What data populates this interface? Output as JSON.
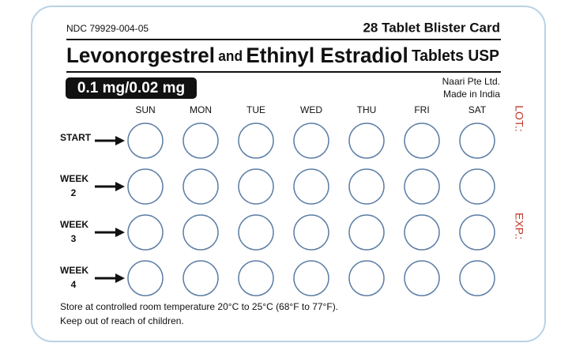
{
  "header": {
    "ndc": "NDC 79929-004-05",
    "card_type": "28 Tablet Blister Card"
  },
  "title": {
    "part1": "Levonorgestrel",
    "part2": "and",
    "part3": "Ethinyl Estradiol",
    "part4": "Tablets USP"
  },
  "strength": "0.1 mg/0.02 mg",
  "manufacturer": {
    "name": "Naari Pte Ltd.",
    "origin": "Made in India"
  },
  "days": [
    "SUN",
    "MON",
    "TUE",
    "WED",
    "THU",
    "FRI",
    "SAT"
  ],
  "rows": [
    {
      "label": "START"
    },
    {
      "label": "WEEK",
      "number": "2"
    },
    {
      "label": "WEEK",
      "number": "3"
    },
    {
      "label": "WEEK",
      "number": "4"
    }
  ],
  "side": {
    "lot": "LOT.:",
    "exp": "EXP.:"
  },
  "footer": {
    "storage": "Store at controlled room temperature 20°C to 25°C (68°F to 77°F).",
    "warning": "Keep out of reach of children."
  }
}
